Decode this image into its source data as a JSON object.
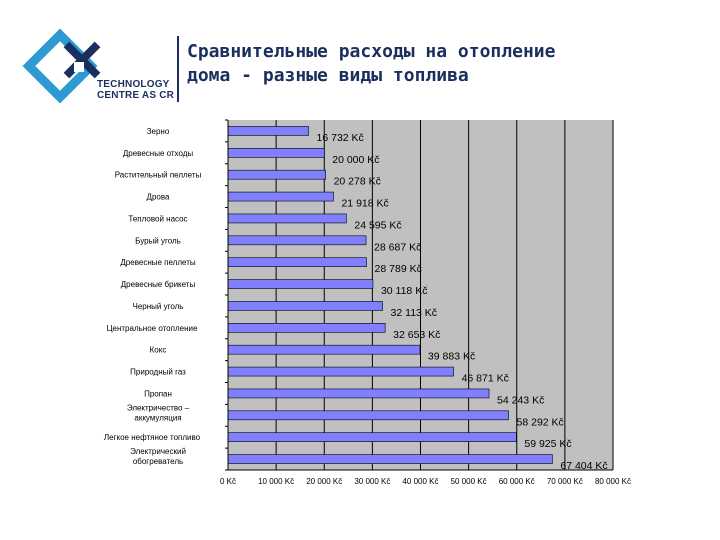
{
  "logo": {
    "icon": "technology-centre-logo",
    "line1": "TECHNOLOGY",
    "line2": "CENTRE AS CR",
    "color_primary": "#2e9ad4",
    "color_dark": "#1a2f5e"
  },
  "title": {
    "line1": "Сравнительные расходы на отопление",
    "line2": "дома  - разные виды топлива",
    "color": "#1a2f5e"
  },
  "chart_data": {
    "type": "bar",
    "orientation": "horizontal",
    "categories": [
      "Зерно",
      "Древесные отходы",
      "Растительный пеллеты",
      "Дрова",
      "Тепловой насос",
      "Бурый уголь",
      "Древесные пеллеты",
      "Древесные брикеты",
      "Черный уголь",
      "Центральное отопление",
      "Кокс",
      "Природный газ",
      "Пропан",
      "Электричество – аккумуляция",
      "Легкое нефтяное топливо",
      "Электрический обогреватель"
    ],
    "category_lines": [
      [
        "Зерно"
      ],
      [
        "Древесные отходы"
      ],
      [
        "Растительный пеллеты"
      ],
      [
        "Дрова"
      ],
      [
        "Тепловой насос"
      ],
      [
        "Бурый уголь"
      ],
      [
        "Древесные пеллеты"
      ],
      [
        "Древесные брикеты"
      ],
      [
        "Черный уголь"
      ],
      [
        "Центральное отопление"
      ],
      [
        "Кокс"
      ],
      [
        "Природный газ"
      ],
      [
        "Пропан"
      ],
      [
        "Электричество –",
        "аккумуляция"
      ],
      [
        "Легкое нефтяное топливо"
      ],
      [
        "Электрический",
        "обогреватель"
      ]
    ],
    "values": [
      16732,
      20000,
      20278,
      21918,
      24595,
      28687,
      28789,
      30118,
      32113,
      32653,
      39883,
      46871,
      54243,
      58292,
      59925,
      67404
    ],
    "data_labels": [
      "16 732 Kč",
      "20 000 Kč",
      "20 278 Kč",
      "21 918 Kč",
      "24 595 Kč",
      "28 687 Kč",
      "28 789 Kč",
      "30 118 Kč",
      "32 113 Kč",
      "32 653 Kč",
      "39 883 Kč",
      "46 871 Kč",
      "54 243 Kč",
      "58 292 Kč",
      "59 925 Kč",
      "67 404 Kč"
    ],
    "xlim": [
      0,
      80000
    ],
    "xticks": [
      0,
      10000,
      20000,
      30000,
      40000,
      50000,
      60000,
      70000,
      80000
    ],
    "xtick_labels": [
      "0 Kč",
      "10 000 Kč",
      "20 000 Kč",
      "30 000 Kč",
      "40 000 Kč",
      "50 000 Kč",
      "60 000 Kč",
      "70 000 Kč",
      "80 000 Kč"
    ],
    "title": "",
    "xlabel": "",
    "ylabel": "",
    "grid": true,
    "bar_color": "#8080ff",
    "plot_background": "#c0c0c0"
  }
}
